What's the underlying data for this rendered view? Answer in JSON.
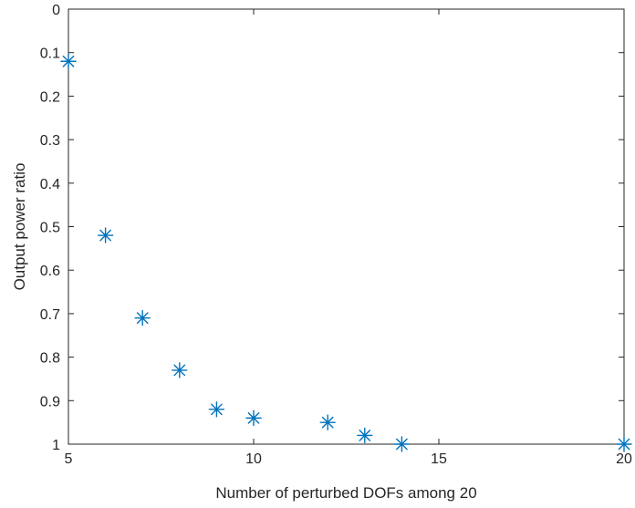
{
  "chart_data": {
    "type": "scatter",
    "title": "",
    "xlabel": "Number of perturbed DOFs among 20",
    "ylabel": "Output power ratio",
    "xlim": [
      5,
      20
    ],
    "ylim": [
      0,
      1
    ],
    "y_reversed": true,
    "xticks": [
      "5",
      "10",
      "15",
      "20"
    ],
    "yticks": [
      "0",
      "0.1",
      "0.2",
      "0.3",
      "0.4",
      "0.5",
      "0.6",
      "0.7",
      "0.8",
      "0.9",
      "1"
    ],
    "marker": "asterisk",
    "grid": false,
    "color": "#0072BD",
    "series": [
      {
        "x": [
          5,
          6,
          7,
          8,
          9,
          10,
          12,
          13,
          14,
          20
        ],
        "y": [
          0.12,
          0.52,
          0.71,
          0.83,
          0.92,
          0.94,
          0.95,
          0.98,
          1.0,
          1.0
        ]
      }
    ]
  }
}
